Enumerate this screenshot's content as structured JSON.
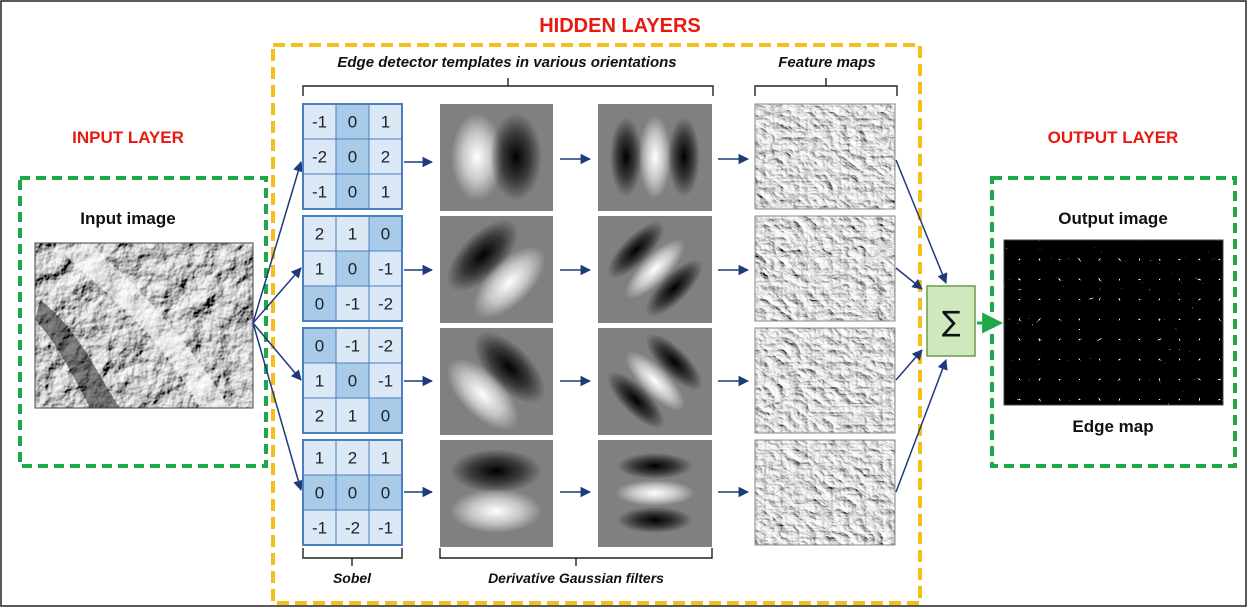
{
  "title": "HIDDEN LAYERS",
  "input_layer": {
    "title": "INPUT LAYER",
    "caption": "Input image"
  },
  "output_layer": {
    "title": "OUTPUT LAYER",
    "caption_top": "Output image",
    "caption_bottom": "Edge map"
  },
  "hidden": {
    "templates_label": "Edge detector templates in various orientations",
    "feature_maps_label": "Feature maps",
    "sobel_label": "Sobel",
    "gaussian_label": "Derivative Gaussian filters"
  },
  "sum_symbol": "∑",
  "sobel_kernels": [
    {
      "cells": [
        [
          "-1",
          "0",
          "1"
        ],
        [
          "-2",
          "0",
          "2"
        ],
        [
          "-1",
          "0",
          "1"
        ]
      ],
      "hl": [
        [
          0,
          1
        ],
        [
          1,
          1
        ],
        [
          2,
          1
        ]
      ]
    },
    {
      "cells": [
        [
          "2",
          "1",
          "0"
        ],
        [
          "1",
          "0",
          "-1"
        ],
        [
          "0",
          "-1",
          "-2"
        ]
      ],
      "hl": [
        [
          0,
          2
        ],
        [
          1,
          1
        ],
        [
          2,
          0
        ]
      ]
    },
    {
      "cells": [
        [
          "0",
          "-1",
          "-2"
        ],
        [
          "1",
          "0",
          "-1"
        ],
        [
          "2",
          "1",
          "0"
        ]
      ],
      "hl": [
        [
          0,
          0
        ],
        [
          1,
          1
        ],
        [
          2,
          2
        ]
      ]
    },
    {
      "cells": [
        [
          "1",
          "2",
          "1"
        ],
        [
          "0",
          "0",
          "0"
        ],
        [
          "-1",
          "-2",
          "-1"
        ]
      ],
      "hl": [
        [
          1,
          0
        ],
        [
          1,
          1
        ],
        [
          1,
          2
        ]
      ]
    }
  ],
  "colors": {
    "title_red": "#e8190f",
    "hidden_border": "#f2bf1b",
    "io_border": "#1fa84a",
    "kernel_fill": "#dbe9f7",
    "kernel_highlight": "#a9cbea",
    "kernel_border": "#4a7fc0",
    "arrow": "#1f3a7a",
    "sum_fill": "#cfe8bd"
  }
}
